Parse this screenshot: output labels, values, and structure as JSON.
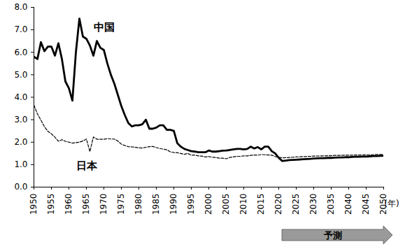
{
  "chart_data": {
    "type": "line",
    "xlabel": "(年)",
    "x": [
      1950,
      1951,
      1952,
      1953,
      1954,
      1955,
      1956,
      1957,
      1958,
      1959,
      1960,
      1961,
      1962,
      1963,
      1964,
      1965,
      1966,
      1967,
      1968,
      1969,
      1970,
      1971,
      1972,
      1973,
      1974,
      1975,
      1976,
      1977,
      1978,
      1979,
      1980,
      1981,
      1982,
      1983,
      1984,
      1985,
      1986,
      1987,
      1988,
      1989,
      1990,
      1991,
      1992,
      1993,
      1994,
      1995,
      1996,
      1997,
      1998,
      1999,
      2000,
      2001,
      2002,
      2003,
      2004,
      2005,
      2006,
      2007,
      2008,
      2009,
      2010,
      2011,
      2012,
      2013,
      2014,
      2015,
      2016,
      2017,
      2018,
      2019,
      2020,
      2021,
      2022,
      2023,
      2024,
      2025,
      2026,
      2027,
      2028,
      2029,
      2030,
      2031,
      2032,
      2033,
      2034,
      2035,
      2036,
      2037,
      2038,
      2039,
      2040,
      2041,
      2042,
      2043,
      2044,
      2045,
      2046,
      2047,
      2048,
      2049,
      2050
    ],
    "series": [
      {
        "name": "中国",
        "color": "#000000",
        "line_style": "solid",
        "label_at": [
          1967,
          7.1
        ],
        "values": [
          5.8,
          5.7,
          6.45,
          6.05,
          6.25,
          6.25,
          5.85,
          6.4,
          5.7,
          4.7,
          4.4,
          3.85,
          6.0,
          7.5,
          6.7,
          6.6,
          6.3,
          5.85,
          6.5,
          6.2,
          6.1,
          5.5,
          5.0,
          4.6,
          4.1,
          3.6,
          3.2,
          2.85,
          2.7,
          2.75,
          2.75,
          2.8,
          3.0,
          2.6,
          2.6,
          2.65,
          2.75,
          2.75,
          2.55,
          2.55,
          2.5,
          1.95,
          1.8,
          1.7,
          1.65,
          1.6,
          1.58,
          1.55,
          1.55,
          1.55,
          1.63,
          1.58,
          1.58,
          1.6,
          1.62,
          1.63,
          1.65,
          1.68,
          1.7,
          1.7,
          1.68,
          1.7,
          1.8,
          1.72,
          1.78,
          1.68,
          1.8,
          1.8,
          1.6,
          1.5,
          1.3,
          1.16,
          1.18,
          1.2,
          1.21,
          1.22,
          1.23,
          1.24,
          1.25,
          1.26,
          1.27,
          1.28,
          1.29,
          1.29,
          1.3,
          1.3,
          1.31,
          1.32,
          1.32,
          1.33,
          1.33,
          1.34,
          1.35,
          1.35,
          1.36,
          1.36,
          1.37,
          1.38,
          1.38,
          1.39,
          1.4
        ]
      },
      {
        "name": "日本",
        "color": "#000000",
        "line_style": "dashed",
        "label_at": [
          1962,
          0.95
        ],
        "values": [
          3.65,
          3.26,
          2.98,
          2.69,
          2.48,
          2.37,
          2.22,
          2.04,
          2.11,
          2.04,
          2.0,
          1.96,
          1.98,
          2.0,
          2.05,
          2.14,
          1.58,
          2.23,
          2.13,
          2.13,
          2.13,
          2.16,
          2.14,
          2.14,
          2.05,
          1.91,
          1.85,
          1.8,
          1.79,
          1.77,
          1.75,
          1.74,
          1.77,
          1.8,
          1.81,
          1.76,
          1.72,
          1.69,
          1.66,
          1.57,
          1.54,
          1.53,
          1.5,
          1.46,
          1.5,
          1.42,
          1.43,
          1.39,
          1.38,
          1.34,
          1.36,
          1.33,
          1.32,
          1.29,
          1.29,
          1.26,
          1.32,
          1.34,
          1.37,
          1.37,
          1.39,
          1.39,
          1.41,
          1.43,
          1.42,
          1.45,
          1.44,
          1.43,
          1.42,
          1.36,
          1.33,
          1.3,
          1.31,
          1.32,
          1.33,
          1.34,
          1.35,
          1.36,
          1.36,
          1.37,
          1.38,
          1.38,
          1.39,
          1.39,
          1.4,
          1.4,
          1.41,
          1.41,
          1.41,
          1.42,
          1.42,
          1.42,
          1.43,
          1.43,
          1.43,
          1.44,
          1.44,
          1.44,
          1.45,
          1.45,
          1.45
        ]
      }
    ],
    "annotations": [
      {
        "text": "予測",
        "x_start": 2021,
        "x_end": 2050
      }
    ],
    "xlim": [
      1950,
      2050
    ],
    "xticks": [
      1950,
      1955,
      1960,
      1965,
      1970,
      1975,
      1980,
      1985,
      1990,
      1995,
      2000,
      2005,
      2010,
      2015,
      2020,
      2025,
      2030,
      2035,
      2040,
      2045,
      2050
    ],
    "ylim": [
      0,
      8
    ],
    "yticks": [
      {
        "value": 0,
        "label": "0.0"
      },
      {
        "value": 1,
        "label": "1.0"
      },
      {
        "value": 2,
        "label": "2.0"
      },
      {
        "value": 3,
        "label": "3.0"
      },
      {
        "value": 4,
        "label": "4.0"
      },
      {
        "value": 5,
        "label": "5.0"
      },
      {
        "value": 6,
        "label": "6.0"
      },
      {
        "value": 7,
        "label": "7.0"
      },
      {
        "value": 8,
        "label": "8.0"
      }
    ],
    "grid": false
  }
}
